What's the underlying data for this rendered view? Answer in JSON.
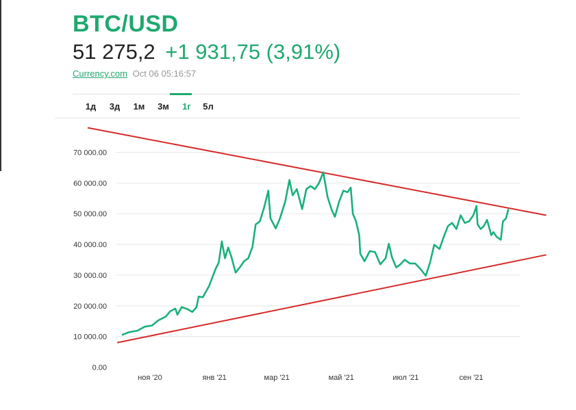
{
  "header": {
    "pair": "BTC/USD",
    "price": "51 275,2",
    "change": "+1 931,75 (3,91%)",
    "source": "Currency.com",
    "timestamp": "Oct 06 05:16:57"
  },
  "tabs": [
    {
      "label": "1д",
      "active": false
    },
    {
      "label": "3д",
      "active": false
    },
    {
      "label": "1м",
      "active": false
    },
    {
      "label": "3м",
      "active": false
    },
    {
      "label": "1г",
      "active": true
    },
    {
      "label": "5л",
      "active": false
    }
  ],
  "colors": {
    "accent": "#1fa86f",
    "line": "#19b07a",
    "trendline": "#d62a2a",
    "grid": "#e6e6e6"
  },
  "chart_data": {
    "type": "line",
    "title": "",
    "xlabel": "",
    "ylabel": "",
    "grid": true,
    "ylim": [
      0,
      70000
    ],
    "y_ticks": [
      0,
      10000,
      20000,
      30000,
      40000,
      50000,
      60000,
      70000
    ],
    "y_tick_labels": [
      "0.00",
      "10 000.00",
      "20 000.00",
      "30 000.00",
      "40 000.00",
      "50 000.00",
      "60 000.00",
      "70 000.00"
    ],
    "x_ticks": [
      {
        "label": "ноя '20",
        "date": "2020-11-01"
      },
      {
        "label": "янв '21",
        "date": "2021-01-01"
      },
      {
        "label": "мар '21",
        "date": "2021-03-01"
      },
      {
        "label": "май '21",
        "date": "2021-05-01"
      },
      {
        "label": "июл '21",
        "date": "2021-07-01"
      },
      {
        "label": "сен '21",
        "date": "2021-09-01"
      }
    ],
    "xlim": [
      "2020-10-06",
      "2021-10-06"
    ],
    "series": [
      {
        "points": [
          [
            "2020-10-06",
            10600
          ],
          [
            "2020-10-12",
            11400
          ],
          [
            "2020-10-20",
            11900
          ],
          [
            "2020-10-27",
            13200
          ],
          [
            "2020-11-03",
            13600
          ],
          [
            "2020-11-09",
            15300
          ],
          [
            "2020-11-16",
            16500
          ],
          [
            "2020-11-20",
            18200
          ],
          [
            "2020-11-25",
            19100
          ],
          [
            "2020-11-27",
            17100
          ],
          [
            "2020-12-01",
            19600
          ],
          [
            "2020-12-06",
            19000
          ],
          [
            "2020-12-11",
            18000
          ],
          [
            "2020-12-15",
            19500
          ],
          [
            "2020-12-17",
            23000
          ],
          [
            "2020-12-21",
            22800
          ],
          [
            "2020-12-27",
            26500
          ],
          [
            "2021-01-02",
            32000
          ],
          [
            "2021-01-05",
            34000
          ],
          [
            "2021-01-08",
            41000
          ],
          [
            "2021-01-11",
            35500
          ],
          [
            "2021-01-14",
            39000
          ],
          [
            "2021-01-17",
            36000
          ],
          [
            "2021-01-21",
            30800
          ],
          [
            "2021-01-25",
            32500
          ],
          [
            "2021-01-29",
            34500
          ],
          [
            "2021-02-02",
            35500
          ],
          [
            "2021-02-06",
            39200
          ],
          [
            "2021-02-09",
            46500
          ],
          [
            "2021-02-13",
            47500
          ],
          [
            "2021-02-17",
            52000
          ],
          [
            "2021-02-21",
            57500
          ],
          [
            "2021-02-23",
            48500
          ],
          [
            "2021-02-28",
            45200
          ],
          [
            "2021-03-04",
            48500
          ],
          [
            "2021-03-09",
            54000
          ],
          [
            "2021-03-13",
            61000
          ],
          [
            "2021-03-16",
            56000
          ],
          [
            "2021-03-20",
            58000
          ],
          [
            "2021-03-25",
            51500
          ],
          [
            "2021-03-29",
            58000
          ],
          [
            "2021-04-02",
            59000
          ],
          [
            "2021-04-06",
            58000
          ],
          [
            "2021-04-10",
            60000
          ],
          [
            "2021-04-14",
            63500
          ],
          [
            "2021-04-18",
            55500
          ],
          [
            "2021-04-22",
            51200
          ],
          [
            "2021-04-25",
            49000
          ],
          [
            "2021-04-29",
            54000
          ],
          [
            "2021-05-03",
            57500
          ],
          [
            "2021-05-07",
            57000
          ],
          [
            "2021-05-10",
            58500
          ],
          [
            "2021-05-12",
            50000
          ],
          [
            "2021-05-15",
            47500
          ],
          [
            "2021-05-18",
            43000
          ],
          [
            "2021-05-19",
            37000
          ],
          [
            "2021-05-23",
            34500
          ],
          [
            "2021-05-28",
            37800
          ],
          [
            "2021-06-02",
            37500
          ],
          [
            "2021-06-07",
            33500
          ],
          [
            "2021-06-12",
            35500
          ],
          [
            "2021-06-15",
            40200
          ],
          [
            "2021-06-18",
            35800
          ],
          [
            "2021-06-22",
            32500
          ],
          [
            "2021-06-26",
            33500
          ],
          [
            "2021-06-30",
            35000
          ],
          [
            "2021-07-05",
            33800
          ],
          [
            "2021-07-10",
            33800
          ],
          [
            "2021-07-15",
            32000
          ],
          [
            "2021-07-20",
            29800
          ],
          [
            "2021-07-24",
            34000
          ],
          [
            "2021-07-28",
            39900
          ],
          [
            "2021-08-02",
            38500
          ],
          [
            "2021-08-06",
            42500
          ],
          [
            "2021-08-10",
            46000
          ],
          [
            "2021-08-14",
            47000
          ],
          [
            "2021-08-18",
            45000
          ],
          [
            "2021-08-22",
            49500
          ],
          [
            "2021-08-26",
            47000
          ],
          [
            "2021-08-30",
            47500
          ],
          [
            "2021-09-03",
            49500
          ],
          [
            "2021-09-06",
            52500
          ],
          [
            "2021-09-07",
            46500
          ],
          [
            "2021-09-10",
            45000
          ],
          [
            "2021-09-13",
            46000
          ],
          [
            "2021-09-16",
            48000
          ],
          [
            "2021-09-20",
            43000
          ],
          [
            "2021-09-22",
            44000
          ],
          [
            "2021-09-25",
            42500
          ],
          [
            "2021-09-29",
            41500
          ],
          [
            "2021-10-01",
            47500
          ],
          [
            "2021-10-04",
            48500
          ],
          [
            "2021-10-06",
            51275
          ]
        ]
      }
    ],
    "trendlines": [
      {
        "points": [
          [
            "2020-09-03",
            78000
          ],
          [
            "2021-11-11",
            49500
          ]
        ]
      },
      {
        "points": [
          [
            "2020-10-01",
            8000
          ],
          [
            "2021-11-11",
            36600
          ]
        ]
      }
    ]
  }
}
